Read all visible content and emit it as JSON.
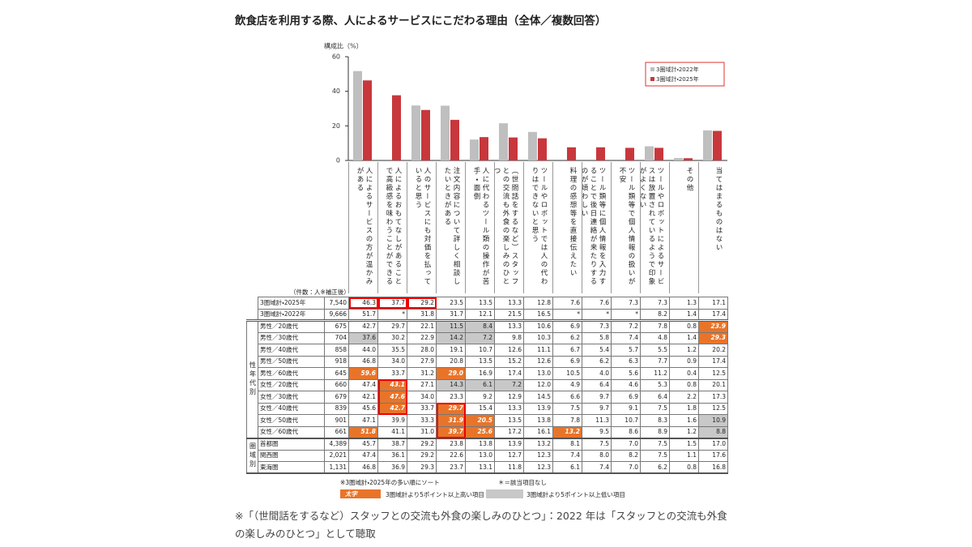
{
  "title": "飲食店を利用する際、人によるサービスにこだわる理由（全体／複数回答）",
  "chart_data": {
    "type": "bar",
    "y_label": "構成比（%）",
    "categories": [
      "人によるサービスの方が温かみがある",
      "人によるおもてなしがあることで高級感を味わうことができる",
      "人のサービスにも対価を払っていると思う",
      "注文内容について詳しく相談したいときがある",
      "人に代わるツール類の操作が苦手・面倒",
      "（世間話をするなど）スタッフとの交流も外食の楽しみのひとつ",
      "ツールやロボットでは人の代わりはできないと思う",
      "料理の感想等を直接伝えたい",
      "ツール類等に個人情報を入力することで後日連絡が来たりするのが煩わしい",
      "ツール類等で個人情報の扱いが不安",
      "ツールやロボットによるサービスは放置されているようで印象がよくない",
      "その他",
      "当てはまるものはない"
    ],
    "series": [
      {
        "name": "3圏域計・2025年",
        "color": "#c8373c",
        "n": "7,540",
        "values": [
          46.3,
          37.7,
          29.2,
          23.5,
          13.5,
          13.3,
          12.8,
          7.6,
          7.6,
          7.3,
          7.3,
          1.3,
          17.1
        ]
      },
      {
        "name": "3圏域計・2022年",
        "color": "#bfbfbf",
        "n": "9,666",
        "values": [
          51.7,
          null,
          31.8,
          31.7,
          12.1,
          21.5,
          16.5,
          null,
          null,
          null,
          8.2,
          1.4,
          17.4
        ],
        "value_labels": [
          "51.7",
          "*",
          "31.8",
          "31.7",
          "12.1",
          "21.5",
          "16.5",
          "*",
          "*",
          "*",
          "8.2",
          "1.4",
          "17.4"
        ]
      }
    ],
    "ylim": [
      0,
      60
    ],
    "yticks": [
      0,
      20,
      40,
      60
    ],
    "legend": "top-right"
  },
  "table": {
    "n_header": "（件数：人※補正後）",
    "groups": [
      {
        "label": "性年代別",
        "rows": [
          {
            "label": "男性／20歳代",
            "n": "675",
            "values": [
              "42.7",
              "29.7",
              "22.1",
              "11.5",
              "8.4",
              "13.3",
              "10.6",
              "6.9",
              "7.3",
              "7.2",
              "7.8",
              "0.8",
              "23.9"
            ]
          },
          {
            "label": "男性／30歳代",
            "n": "704",
            "values": [
              "37.6",
              "30.2",
              "22.9",
              "14.2",
              "7.2",
              "9.8",
              "10.3",
              "6.2",
              "5.8",
              "7.4",
              "4.8",
              "1.4",
              "29.3"
            ]
          },
          {
            "label": "男性／40歳代",
            "n": "858",
            "values": [
              "44.0",
              "35.5",
              "28.0",
              "19.1",
              "10.7",
              "12.6",
              "11.1",
              "6.7",
              "5.4",
              "5.7",
              "5.5",
              "1.2",
              "20.2"
            ]
          },
          {
            "label": "男性／50歳代",
            "n": "918",
            "values": [
              "46.8",
              "34.0",
              "27.9",
              "20.8",
              "13.5",
              "15.2",
              "12.6",
              "6.9",
              "6.2",
              "6.3",
              "7.7",
              "0.9",
              "17.4"
            ]
          },
          {
            "label": "男性／60歳代",
            "n": "645",
            "values": [
              "59.6",
              "33.7",
              "31.2",
              "29.0",
              "16.9",
              "17.4",
              "13.0",
              "10.5",
              "4.0",
              "5.6",
              "11.2",
              "0.4",
              "12.5"
            ]
          },
          {
            "label": "女性／20歳代",
            "n": "660",
            "values": [
              "47.4",
              "43.1",
              "27.1",
              "14.3",
              "6.1",
              "7.2",
              "12.0",
              "4.9",
              "6.4",
              "4.6",
              "5.3",
              "0.8",
              "20.1"
            ]
          },
          {
            "label": "女性／30歳代",
            "n": "679",
            "values": [
              "42.1",
              "47.6",
              "34.0",
              "23.3",
              "9.2",
              "12.9",
              "14.5",
              "6.6",
              "9.7",
              "6.9",
              "6.4",
              "2.2",
              "17.3"
            ]
          },
          {
            "label": "女性／40歳代",
            "n": "839",
            "values": [
              "45.6",
              "42.7",
              "33.7",
              "29.7",
              "15.4",
              "13.3",
              "13.9",
              "7.5",
              "9.7",
              "9.1",
              "7.5",
              "1.8",
              "12.5"
            ]
          },
          {
            "label": "女性／50歳代",
            "n": "901",
            "values": [
              "47.1",
              "39.9",
              "33.3",
              "31.9",
              "20.5",
              "13.5",
              "13.8",
              "7.8",
              "11.3",
              "10.7",
              "8.3",
              "1.6",
              "10.9"
            ]
          },
          {
            "label": "女性／60歳代",
            "n": "661",
            "values": [
              "51.8",
              "41.1",
              "31.0",
              "39.7",
              "25.6",
              "17.2",
              "16.1",
              "13.2",
              "9.5",
              "8.6",
              "8.9",
              "1.2",
              "8.8"
            ]
          }
        ]
      },
      {
        "label": "圏域別",
        "rows": [
          {
            "label": "首都圏",
            "n": "4,389",
            "values": [
              "45.7",
              "38.7",
              "29.2",
              "23.8",
              "13.8",
              "13.9",
              "13.2",
              "8.1",
              "7.5",
              "7.0",
              "7.5",
              "1.5",
              "17.0"
            ]
          },
          {
            "label": "関西圏",
            "n": "2,021",
            "values": [
              "47.4",
              "36.1",
              "29.2",
              "22.6",
              "13.0",
              "12.7",
              "12.3",
              "7.4",
              "8.0",
              "8.2",
              "7.5",
              "1.1",
              "17.6"
            ]
          },
          {
            "label": "東海圏",
            "n": "1,131",
            "values": [
              "46.8",
              "36.9",
              "29.3",
              "23.7",
              "13.1",
              "11.8",
              "12.3",
              "6.1",
              "7.4",
              "7.0",
              "6.2",
              "0.8",
              "16.8"
            ]
          }
        ]
      }
    ],
    "high_color": "#e8742a",
    "low_color": "#c8c8c8",
    "high": [
      [
        0,
        0,
        12
      ],
      [
        0,
        1,
        12
      ],
      [
        0,
        4,
        0
      ],
      [
        0,
        4,
        3
      ],
      [
        0,
        5,
        1
      ],
      [
        0,
        6,
        1
      ],
      [
        0,
        7,
        1
      ],
      [
        0,
        7,
        3
      ],
      [
        0,
        8,
        3
      ],
      [
        0,
        8,
        4
      ],
      [
        0,
        9,
        0
      ],
      [
        0,
        9,
        3
      ],
      [
        0,
        9,
        4
      ],
      [
        0,
        9,
        7
      ]
    ],
    "low": [
      [
        0,
        0,
        3
      ],
      [
        0,
        0,
        4
      ],
      [
        0,
        1,
        0
      ],
      [
        0,
        1,
        3
      ],
      [
        0,
        1,
        4
      ],
      [
        0,
        5,
        3
      ],
      [
        0,
        5,
        4
      ],
      [
        0,
        5,
        5
      ],
      [
        0,
        8,
        12
      ],
      [
        0,
        9,
        12
      ]
    ]
  },
  "notes": {
    "sort": "※3圏域計・2025年の多い順にソート",
    "na": "＊＝該当項目なし",
    "high_sample": "太字",
    "high_desc": "3圏域計より5ポイント以上高い項目",
    "low_desc": "3圏域計より5ポイント以上低い項目",
    "footnote": "※「（世間話をするなど）スタッフとの交流も外食の楽しみのひとつ」：2022 年は「スタッフとの交流も外食の楽しみのひとつ」として聴取"
  }
}
